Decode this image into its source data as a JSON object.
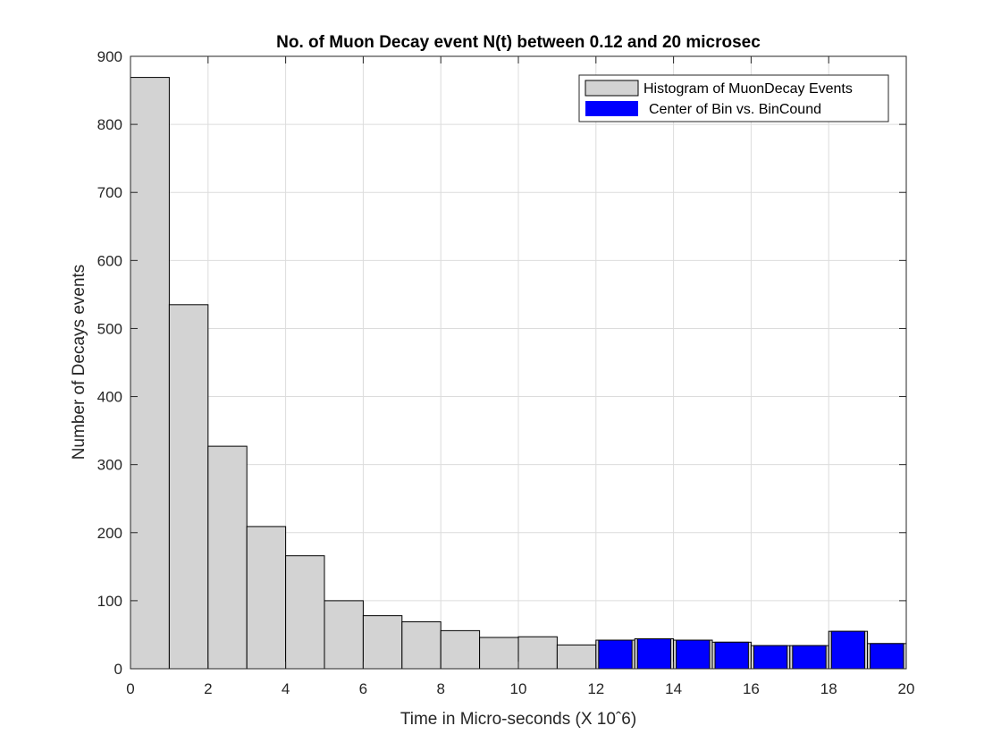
{
  "chart_data": {
    "type": "bar",
    "title": "No. of Muon Decay event N(t) between 0.12 and 20 microsec",
    "xlabel": "Time in Micro-seconds (X 10ˆ6)",
    "ylabel": "Number of Decays events",
    "xlim": [
      0,
      20
    ],
    "ylim": [
      0,
      900
    ],
    "xticks": [
      0,
      2,
      4,
      6,
      8,
      10,
      12,
      14,
      16,
      18,
      20
    ],
    "yticks": [
      0,
      100,
      200,
      300,
      400,
      500,
      600,
      700,
      800,
      900
    ],
    "grid": true,
    "legend_position": "top-right",
    "histogram": {
      "name": "Histogram of MuonDecay Events",
      "color": "#d3d3d3",
      "bin_edges": [
        0,
        1,
        2,
        3,
        4,
        5,
        6,
        7,
        8,
        9,
        10,
        11,
        12,
        13,
        14,
        15,
        16,
        17,
        18,
        19,
        20
      ],
      "counts": [
        869,
        535,
        327,
        209,
        166,
        100,
        78,
        69,
        56,
        46,
        47,
        35,
        42,
        44,
        42,
        39,
        34,
        34,
        55,
        37
      ]
    },
    "center_bars": {
      "name": "Center of Bin vs. BinCound",
      "color": "#0000ff",
      "x": [
        12.5,
        13.5,
        14.5,
        15.5,
        16.5,
        17.5,
        18.5,
        19.5
      ],
      "values": [
        42,
        44,
        42,
        39,
        34,
        34,
        55,
        37
      ]
    }
  }
}
